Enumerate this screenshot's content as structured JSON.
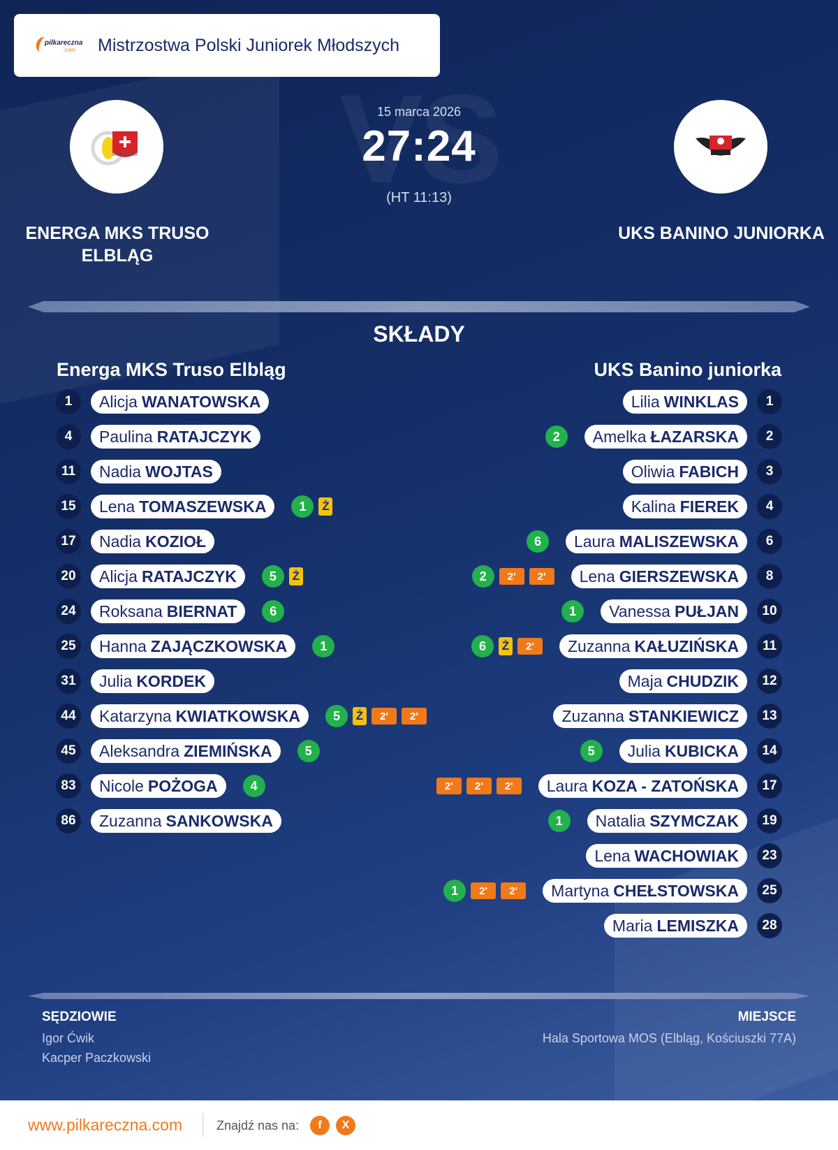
{
  "header": {
    "competition": "Mistrzostwa Polski Juniorek Młodszych",
    "brand_top": "pilkareczna",
    "brand_bottom": ".com"
  },
  "match": {
    "date": "15 marca 2026",
    "score": "27:24",
    "halftime": "(HT 11:13)",
    "watermark": "VS",
    "home": {
      "name": "ENERGA MKS TRUSO ELBLĄG",
      "roster_title": "Energa MKS Truso Elbląg"
    },
    "away": {
      "name": "UKS BANINO JUNIORKA",
      "roster_title": "UKS Banino juniorka"
    }
  },
  "lineups_title": "SKŁADY",
  "colors": {
    "background": "#15306a",
    "goal": "#22b14c",
    "yellow_card": "#f4c20d",
    "suspension": "#f07a1a",
    "accent": "#f07a1a"
  },
  "home_roster": [
    {
      "number": "1",
      "first": "Alicja",
      "last": "WANATOWSKA",
      "events": []
    },
    {
      "number": "4",
      "first": "Paulina",
      "last": "RATAJCZYK",
      "events": []
    },
    {
      "number": "11",
      "first": "Nadia",
      "last": "WOJTAS",
      "events": []
    },
    {
      "number": "15",
      "first": "Lena",
      "last": "TOMASZEWSKA",
      "events": [
        {
          "type": "goal",
          "text": "1"
        },
        {
          "type": "yellow",
          "text": "Ż"
        }
      ]
    },
    {
      "number": "17",
      "first": "Nadia",
      "last": "KOZIOŁ",
      "events": []
    },
    {
      "number": "20",
      "first": "Alicja",
      "last": "RATAJCZYK",
      "events": [
        {
          "type": "goal",
          "text": "5"
        },
        {
          "type": "yellow",
          "text": "Ż"
        }
      ]
    },
    {
      "number": "24",
      "first": "Roksana",
      "last": "BIERNAT",
      "events": [
        {
          "type": "goal",
          "text": "6"
        }
      ]
    },
    {
      "number": "25",
      "first": "Hanna",
      "last": "ZAJĄCZKOWSKA",
      "events": [
        {
          "type": "goal",
          "text": "1"
        }
      ]
    },
    {
      "number": "31",
      "first": "Julia",
      "last": "KORDEK",
      "events": []
    },
    {
      "number": "44",
      "first": "Katarzyna",
      "last": "KWIATKOWSKA",
      "events": [
        {
          "type": "goal",
          "text": "5"
        },
        {
          "type": "yellow",
          "text": "Ż"
        },
        {
          "type": "susp",
          "text": "2'"
        },
        {
          "type": "susp",
          "text": "2'"
        }
      ]
    },
    {
      "number": "45",
      "first": "Aleksandra",
      "last": "ZIEMIŃSKA",
      "events": [
        {
          "type": "goal",
          "text": "5"
        }
      ]
    },
    {
      "number": "83",
      "first": "Nicole",
      "last": "POŻOGA",
      "events": [
        {
          "type": "goal",
          "text": "4"
        }
      ]
    },
    {
      "number": "86",
      "first": "Zuzanna",
      "last": "SANKOWSKA",
      "events": []
    }
  ],
  "away_roster": [
    {
      "number": "1",
      "first": "Lilia",
      "last": "WINKLAS",
      "events": []
    },
    {
      "number": "2",
      "first": "Amelka",
      "last": "ŁAZARSKA",
      "events": [
        {
          "type": "goal",
          "text": "2"
        }
      ]
    },
    {
      "number": "3",
      "first": "Oliwia",
      "last": "FABICH",
      "events": []
    },
    {
      "number": "4",
      "first": "Kalina",
      "last": "FIEREK",
      "events": []
    },
    {
      "number": "6",
      "first": "Laura",
      "last": "MALISZEWSKA",
      "events": [
        {
          "type": "goal",
          "text": "6"
        }
      ]
    },
    {
      "number": "8",
      "first": "Lena",
      "last": "GIERSZEWSKA",
      "events": [
        {
          "type": "goal",
          "text": "2"
        },
        {
          "type": "susp",
          "text": "2'"
        },
        {
          "type": "susp",
          "text": "2'"
        }
      ]
    },
    {
      "number": "10",
      "first": "Vanessa",
      "last": "PUŁJAN",
      "events": [
        {
          "type": "goal",
          "text": "1"
        }
      ]
    },
    {
      "number": "11",
      "first": "Zuzanna",
      "last": "KAŁUZIŃSKA",
      "events": [
        {
          "type": "goal",
          "text": "6"
        },
        {
          "type": "yellow",
          "text": "Ż"
        },
        {
          "type": "susp",
          "text": "2'"
        }
      ]
    },
    {
      "number": "12",
      "first": "Maja",
      "last": "CHUDZIK",
      "events": []
    },
    {
      "number": "13",
      "first": "Zuzanna",
      "last": "STANKIEWICZ",
      "events": []
    },
    {
      "number": "14",
      "first": "Julia",
      "last": "KUBICKA",
      "events": [
        {
          "type": "goal",
          "text": "5"
        }
      ]
    },
    {
      "number": "17",
      "first": "Laura",
      "last": "KOZA - ZATOŃSKA",
      "events": [
        {
          "type": "susp",
          "text": "2'"
        },
        {
          "type": "susp",
          "text": "2'"
        },
        {
          "type": "susp",
          "text": "2'"
        }
      ]
    },
    {
      "number": "19",
      "first": "Natalia",
      "last": "SZYMCZAK",
      "events": [
        {
          "type": "goal",
          "text": "1"
        }
      ]
    },
    {
      "number": "23",
      "first": "Lena",
      "last": "WACHOWIAK",
      "events": []
    },
    {
      "number": "25",
      "first": "Martyna",
      "last": "CHEŁSTOWSKA",
      "events": [
        {
          "type": "goal",
          "text": "1"
        },
        {
          "type": "susp",
          "text": "2'"
        },
        {
          "type": "susp",
          "text": "2'"
        }
      ]
    },
    {
      "number": "28",
      "first": "Maria",
      "last": "LEMISZKA",
      "events": []
    }
  ],
  "referees": {
    "title": "SĘDZIOWIE",
    "names": [
      "Igor Ćwik",
      "Kacper Paczkowski"
    ]
  },
  "venue": {
    "title": "MIEJSCE",
    "text": "Hala Sportowa MOS (Elbląg, Kościuszki 77A)"
  },
  "footer": {
    "site": "www.pilkareczna.com",
    "find_us": "Znajdź nas na:",
    "facebook": "f",
    "x": "X"
  }
}
